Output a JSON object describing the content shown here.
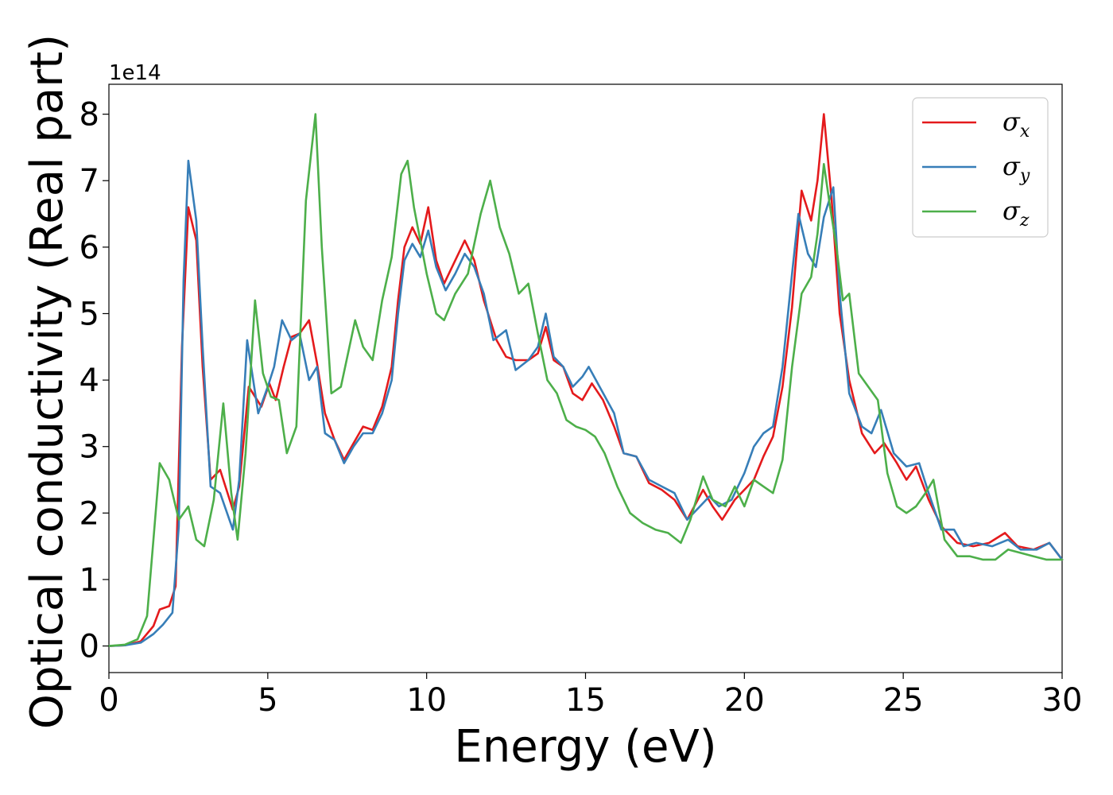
{
  "chart_data": {
    "type": "line",
    "title": "",
    "xlabel": "Energy (eV)",
    "ylabel": "Optical conductivity (Real part)",
    "y_offset_label": "1e14",
    "xlim": [
      0,
      30
    ],
    "ylim": [
      -0.4,
      8.45
    ],
    "x_ticks": [
      0,
      5,
      10,
      15,
      20,
      25,
      30
    ],
    "y_ticks": [
      0,
      1,
      2,
      3,
      4,
      5,
      6,
      7,
      8
    ],
    "grid": false,
    "legend_position": "top-right",
    "series": [
      {
        "name": "σx",
        "legend_symbol": "σ",
        "legend_sub": "x",
        "color": "#e41a1c",
        "points": [
          [
            0,
            0
          ],
          [
            0.5,
            0.01
          ],
          [
            1.0,
            0.07
          ],
          [
            1.4,
            0.3
          ],
          [
            1.6,
            0.55
          ],
          [
            1.9,
            0.6
          ],
          [
            2.1,
            0.9
          ],
          [
            2.3,
            4.5
          ],
          [
            2.5,
            6.6
          ],
          [
            2.75,
            6.1
          ],
          [
            2.95,
            4.2
          ],
          [
            3.2,
            2.5
          ],
          [
            3.5,
            2.65
          ],
          [
            3.9,
            2.05
          ],
          [
            4.1,
            2.4
          ],
          [
            4.4,
            3.9
          ],
          [
            4.8,
            3.6
          ],
          [
            5.05,
            3.95
          ],
          [
            5.25,
            3.7
          ],
          [
            5.5,
            4.2
          ],
          [
            5.75,
            4.65
          ],
          [
            6.0,
            4.7
          ],
          [
            6.3,
            4.9
          ],
          [
            6.55,
            4.25
          ],
          [
            6.8,
            3.5
          ],
          [
            7.1,
            3.1
          ],
          [
            7.4,
            2.8
          ],
          [
            7.7,
            3.05
          ],
          [
            8.0,
            3.3
          ],
          [
            8.3,
            3.25
          ],
          [
            8.6,
            3.6
          ],
          [
            8.9,
            4.2
          ],
          [
            9.1,
            5.2
          ],
          [
            9.3,
            6.0
          ],
          [
            9.55,
            6.3
          ],
          [
            9.8,
            6.05
          ],
          [
            10.05,
            6.6
          ],
          [
            10.3,
            5.8
          ],
          [
            10.55,
            5.45
          ],
          [
            10.9,
            5.8
          ],
          [
            11.2,
            6.1
          ],
          [
            11.5,
            5.8
          ],
          [
            11.8,
            5.2
          ],
          [
            12.2,
            4.6
          ],
          [
            12.5,
            4.35
          ],
          [
            12.8,
            4.3
          ],
          [
            13.2,
            4.3
          ],
          [
            13.5,
            4.4
          ],
          [
            13.75,
            4.8
          ],
          [
            14.0,
            4.3
          ],
          [
            14.3,
            4.2
          ],
          [
            14.6,
            3.8
          ],
          [
            14.9,
            3.7
          ],
          [
            15.2,
            3.95
          ],
          [
            15.55,
            3.7
          ],
          [
            15.9,
            3.3
          ],
          [
            16.2,
            2.9
          ],
          [
            16.6,
            2.85
          ],
          [
            17.0,
            2.45
          ],
          [
            17.4,
            2.35
          ],
          [
            17.8,
            2.2
          ],
          [
            18.2,
            1.9
          ],
          [
            18.7,
            2.35
          ],
          [
            19.0,
            2.1
          ],
          [
            19.3,
            1.9
          ],
          [
            19.7,
            2.2
          ],
          [
            20.0,
            2.35
          ],
          [
            20.3,
            2.5
          ],
          [
            20.6,
            2.85
          ],
          [
            20.9,
            3.15
          ],
          [
            21.2,
            3.9
          ],
          [
            21.5,
            5.1
          ],
          [
            21.8,
            6.85
          ],
          [
            22.1,
            6.4
          ],
          [
            22.3,
            7.0
          ],
          [
            22.5,
            8.0
          ],
          [
            22.75,
            6.7
          ],
          [
            23.0,
            5.0
          ],
          [
            23.3,
            4.0
          ],
          [
            23.7,
            3.2
          ],
          [
            24.1,
            2.9
          ],
          [
            24.4,
            3.05
          ],
          [
            24.8,
            2.75
          ],
          [
            25.1,
            2.5
          ],
          [
            25.4,
            2.7
          ],
          [
            25.8,
            2.2
          ],
          [
            26.2,
            1.8
          ],
          [
            26.7,
            1.55
          ],
          [
            27.2,
            1.5
          ],
          [
            27.7,
            1.55
          ],
          [
            28.2,
            1.7
          ],
          [
            28.6,
            1.5
          ],
          [
            29.1,
            1.45
          ],
          [
            29.6,
            1.55
          ],
          [
            30.0,
            1.3
          ]
        ]
      },
      {
        "name": "σy",
        "legend_symbol": "σ",
        "legend_sub": "y",
        "color": "#377eb8",
        "points": [
          [
            0,
            0
          ],
          [
            0.5,
            0.01
          ],
          [
            1.0,
            0.05
          ],
          [
            1.4,
            0.18
          ],
          [
            1.7,
            0.32
          ],
          [
            2.0,
            0.5
          ],
          [
            2.2,
            1.8
          ],
          [
            2.35,
            5.5
          ],
          [
            2.5,
            7.3
          ],
          [
            2.75,
            6.4
          ],
          [
            2.95,
            4.5
          ],
          [
            3.2,
            2.4
          ],
          [
            3.5,
            2.3
          ],
          [
            3.9,
            1.75
          ],
          [
            4.1,
            2.5
          ],
          [
            4.35,
            4.6
          ],
          [
            4.7,
            3.5
          ],
          [
            5.0,
            3.9
          ],
          [
            5.2,
            4.2
          ],
          [
            5.45,
            4.9
          ],
          [
            5.75,
            4.6
          ],
          [
            6.0,
            4.7
          ],
          [
            6.3,
            4.0
          ],
          [
            6.55,
            4.2
          ],
          [
            6.8,
            3.2
          ],
          [
            7.1,
            3.1
          ],
          [
            7.4,
            2.75
          ],
          [
            7.7,
            3.0
          ],
          [
            8.0,
            3.2
          ],
          [
            8.3,
            3.2
          ],
          [
            8.6,
            3.5
          ],
          [
            8.9,
            4.0
          ],
          [
            9.1,
            5.0
          ],
          [
            9.3,
            5.8
          ],
          [
            9.55,
            6.05
          ],
          [
            9.8,
            5.85
          ],
          [
            10.05,
            6.25
          ],
          [
            10.3,
            5.7
          ],
          [
            10.6,
            5.35
          ],
          [
            10.9,
            5.6
          ],
          [
            11.2,
            5.9
          ],
          [
            11.5,
            5.7
          ],
          [
            11.8,
            5.3
          ],
          [
            12.1,
            4.6
          ],
          [
            12.5,
            4.75
          ],
          [
            12.8,
            4.15
          ],
          [
            13.2,
            4.3
          ],
          [
            13.5,
            4.5
          ],
          [
            13.75,
            5.0
          ],
          [
            14.0,
            4.35
          ],
          [
            14.3,
            4.2
          ],
          [
            14.6,
            3.9
          ],
          [
            14.9,
            4.05
          ],
          [
            15.1,
            4.2
          ],
          [
            15.5,
            3.85
          ],
          [
            15.9,
            3.5
          ],
          [
            16.2,
            2.9
          ],
          [
            16.6,
            2.85
          ],
          [
            17.0,
            2.5
          ],
          [
            17.4,
            2.4
          ],
          [
            17.8,
            2.3
          ],
          [
            18.2,
            1.9
          ],
          [
            18.6,
            2.1
          ],
          [
            18.9,
            2.25
          ],
          [
            19.2,
            2.1
          ],
          [
            19.6,
            2.2
          ],
          [
            20.0,
            2.6
          ],
          [
            20.3,
            3.0
          ],
          [
            20.6,
            3.2
          ],
          [
            20.9,
            3.3
          ],
          [
            21.2,
            4.2
          ],
          [
            21.5,
            5.6
          ],
          [
            21.7,
            6.5
          ],
          [
            22.0,
            5.9
          ],
          [
            22.25,
            5.7
          ],
          [
            22.5,
            6.45
          ],
          [
            22.8,
            6.9
          ],
          [
            23.0,
            5.3
          ],
          [
            23.3,
            3.8
          ],
          [
            23.7,
            3.3
          ],
          [
            24.0,
            3.2
          ],
          [
            24.3,
            3.55
          ],
          [
            24.7,
            2.9
          ],
          [
            25.1,
            2.7
          ],
          [
            25.5,
            2.75
          ],
          [
            25.8,
            2.3
          ],
          [
            26.2,
            1.75
          ],
          [
            26.6,
            1.75
          ],
          [
            26.9,
            1.5
          ],
          [
            27.3,
            1.55
          ],
          [
            27.8,
            1.5
          ],
          [
            28.3,
            1.6
          ],
          [
            28.7,
            1.45
          ],
          [
            29.2,
            1.45
          ],
          [
            29.6,
            1.55
          ],
          [
            30.0,
            1.3
          ]
        ]
      },
      {
        "name": "σz",
        "legend_symbol": "σ",
        "legend_sub": "z",
        "color": "#4daf4a",
        "points": [
          [
            0,
            0
          ],
          [
            0.5,
            0.02
          ],
          [
            0.9,
            0.1
          ],
          [
            1.2,
            0.45
          ],
          [
            1.4,
            1.6
          ],
          [
            1.6,
            2.75
          ],
          [
            1.9,
            2.5
          ],
          [
            2.2,
            1.9
          ],
          [
            2.5,
            2.1
          ],
          [
            2.75,
            1.6
          ],
          [
            3.0,
            1.5
          ],
          [
            3.3,
            2.2
          ],
          [
            3.6,
            3.65
          ],
          [
            3.85,
            2.3
          ],
          [
            4.05,
            1.6
          ],
          [
            4.3,
            2.9
          ],
          [
            4.6,
            5.2
          ],
          [
            4.85,
            4.1
          ],
          [
            5.1,
            3.75
          ],
          [
            5.35,
            3.7
          ],
          [
            5.6,
            2.9
          ],
          [
            5.9,
            3.3
          ],
          [
            6.2,
            6.7
          ],
          [
            6.5,
            8.0
          ],
          [
            6.7,
            6.0
          ],
          [
            7.0,
            3.8
          ],
          [
            7.3,
            3.9
          ],
          [
            7.75,
            4.9
          ],
          [
            8.0,
            4.5
          ],
          [
            8.3,
            4.3
          ],
          [
            8.6,
            5.2
          ],
          [
            8.9,
            5.85
          ],
          [
            9.2,
            7.1
          ],
          [
            9.4,
            7.3
          ],
          [
            9.6,
            6.6
          ],
          [
            10.0,
            5.6
          ],
          [
            10.3,
            5.0
          ],
          [
            10.55,
            4.9
          ],
          [
            10.9,
            5.3
          ],
          [
            11.3,
            5.6
          ],
          [
            11.7,
            6.5
          ],
          [
            12.0,
            7.0
          ],
          [
            12.3,
            6.3
          ],
          [
            12.6,
            5.9
          ],
          [
            12.9,
            5.3
          ],
          [
            13.2,
            5.45
          ],
          [
            13.5,
            4.7
          ],
          [
            13.8,
            4.0
          ],
          [
            14.1,
            3.8
          ],
          [
            14.4,
            3.4
          ],
          [
            14.7,
            3.3
          ],
          [
            15.0,
            3.25
          ],
          [
            15.3,
            3.15
          ],
          [
            15.6,
            2.9
          ],
          [
            16.0,
            2.4
          ],
          [
            16.4,
            2.0
          ],
          [
            16.8,
            1.85
          ],
          [
            17.2,
            1.75
          ],
          [
            17.6,
            1.7
          ],
          [
            18.0,
            1.55
          ],
          [
            18.3,
            1.9
          ],
          [
            18.7,
            2.55
          ],
          [
            19.0,
            2.2
          ],
          [
            19.4,
            2.1
          ],
          [
            19.7,
            2.4
          ],
          [
            20.0,
            2.1
          ],
          [
            20.3,
            2.5
          ],
          [
            20.6,
            2.4
          ],
          [
            20.9,
            2.3
          ],
          [
            21.2,
            2.8
          ],
          [
            21.5,
            4.2
          ],
          [
            21.8,
            5.3
          ],
          [
            22.1,
            5.55
          ],
          [
            22.3,
            6.2
          ],
          [
            22.5,
            7.25
          ],
          [
            22.7,
            6.6
          ],
          [
            22.9,
            6.0
          ],
          [
            23.1,
            5.2
          ],
          [
            23.3,
            5.3
          ],
          [
            23.6,
            4.1
          ],
          [
            23.9,
            3.9
          ],
          [
            24.2,
            3.7
          ],
          [
            24.5,
            2.6
          ],
          [
            24.8,
            2.1
          ],
          [
            25.1,
            2.0
          ],
          [
            25.4,
            2.1
          ],
          [
            25.7,
            2.3
          ],
          [
            25.95,
            2.5
          ],
          [
            26.3,
            1.6
          ],
          [
            26.7,
            1.35
          ],
          [
            27.1,
            1.35
          ],
          [
            27.5,
            1.3
          ],
          [
            27.9,
            1.3
          ],
          [
            28.3,
            1.45
          ],
          [
            28.7,
            1.4
          ],
          [
            29.1,
            1.35
          ],
          [
            29.5,
            1.3
          ],
          [
            30.0,
            1.3
          ]
        ]
      }
    ]
  }
}
